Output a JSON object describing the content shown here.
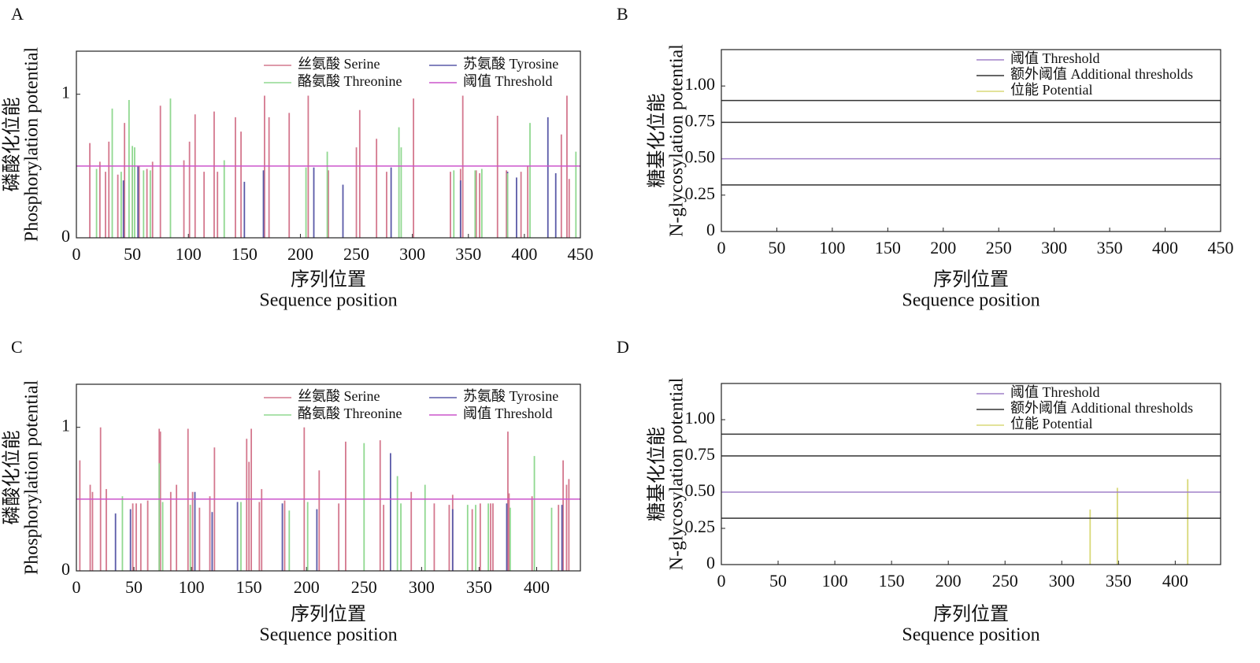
{
  "chart_data": [
    {
      "type": "bar",
      "panel": "A",
      "ylabel": [
        "磷酸化位能",
        "Phosphorylation potential"
      ],
      "xlabel": [
        "序列位置",
        "Sequence position"
      ],
      "xlim": [
        0,
        450
      ],
      "xticks": [
        0,
        50,
        100,
        150,
        200,
        250,
        300,
        350,
        400,
        450
      ],
      "ylim": [
        0,
        1.3
      ],
      "yticks": [
        0,
        1
      ],
      "series": [
        {
          "name": "丝氨酸 Serine",
          "color": "#d4788e",
          "x": [
            12,
            21,
            26,
            29,
            37,
            43,
            50,
            56,
            63,
            68,
            75,
            96,
            101,
            106,
            114,
            123,
            126,
            142,
            147,
            168,
            172,
            190,
            207,
            225,
            250,
            253,
            268,
            277,
            301,
            334,
            343,
            345,
            357,
            360,
            376,
            384,
            397,
            403,
            433,
            438,
            440
          ],
          "values": [
            0.66,
            0.53,
            0.46,
            0.67,
            0.44,
            0.8,
            0.48,
            0.5,
            0.48,
            0.53,
            0.92,
            0.54,
            0.67,
            0.86,
            0.46,
            0.88,
            0.46,
            0.84,
            0.74,
            0.99,
            0.84,
            0.87,
            0.99,
            0.47,
            0.63,
            0.89,
            0.69,
            0.46,
            0.97,
            0.46,
            0.48,
            0.99,
            0.47,
            0.45,
            0.85,
            0.47,
            0.46,
            0.5,
            0.72,
            0.99,
            0.41
          ]
        },
        {
          "name": "苏氨酸 Tyrosine",
          "color": "#5a5aa8",
          "x": [
            42,
            55,
            150,
            167,
            212,
            238,
            281,
            343,
            385,
            393,
            421,
            428
          ],
          "values": [
            0.4,
            0.5,
            0.39,
            0.47,
            0.49,
            0.37,
            0.49,
            0.4,
            0.46,
            0.42,
            0.84,
            0.45
          ]
        },
        {
          "name": "酪氨酸 Threonine",
          "color": "#90d890",
          "x": [
            18,
            32,
            40,
            47,
            50,
            52,
            60,
            66,
            84,
            132,
            205,
            224,
            288,
            290,
            337,
            356,
            362,
            385,
            405,
            446
          ],
          "values": [
            0.48,
            0.9,
            0.46,
            0.96,
            0.64,
            0.63,
            0.47,
            0.47,
            0.97,
            0.54,
            0.49,
            0.6,
            0.77,
            0.63,
            0.47,
            0.47,
            0.48,
            0.45,
            0.8,
            0.6
          ]
        },
        {
          "name": "阈值 Threshold",
          "color": "#cc55cc",
          "values": [
            0.5
          ]
        }
      ]
    },
    {
      "type": "bar",
      "panel": "B",
      "ylabel": [
        "糖基化位能",
        "N-glycosylation potential"
      ],
      "xlabel": [
        "序列位置",
        "Sequence position"
      ],
      "xlim": [
        0,
        450
      ],
      "xticks": [
        0,
        50,
        100,
        150,
        200,
        250,
        300,
        350,
        400,
        450
      ],
      "ylim": [
        0,
        1.25
      ],
      "yticks": [
        0,
        0.25,
        {
          "value": 0.5,
          "label": "0.50"
        },
        0.75,
        {
          "value": 1,
          "label": "1.00"
        }
      ],
      "series": [
        {
          "name": "阈值 Threshold",
          "color": "#a080c8",
          "values": [
            0.5
          ]
        },
        {
          "name": "额外阈值 Additional thresholds",
          "color": "#333333",
          "values": [
            0.32,
            0.75,
            0.9
          ]
        },
        {
          "name": "位能 Potential",
          "color": "#d8d878",
          "x": [],
          "values": []
        }
      ]
    },
    {
      "type": "bar",
      "panel": "C",
      "ylabel": [
        "磷酸化位能",
        "Phosphorylation potential"
      ],
      "xlabel": [
        "序列位置",
        "Sequence position"
      ],
      "xlim": [
        0,
        438
      ],
      "xticks": [
        0,
        50,
        100,
        150,
        200,
        250,
        300,
        350,
        400
      ],
      "ylim": [
        0,
        1.3
      ],
      "yticks": [
        0,
        1
      ],
      "series": [
        {
          "name": "丝氨酸 Serine",
          "color": "#d4788e",
          "x": [
            3,
            12,
            14,
            21,
            26,
            49,
            52,
            56,
            62,
            72,
            73,
            82,
            87,
            97,
            101,
            107,
            116,
            120,
            148,
            150,
            152,
            159,
            161,
            181,
            198,
            211,
            228,
            234,
            264,
            267,
            291,
            311,
            324,
            327,
            344,
            351,
            360,
            362,
            375,
            376,
            396,
            419,
            423,
            426,
            428
          ],
          "values": [
            0.77,
            0.6,
            0.55,
            1.0,
            0.57,
            0.47,
            0.47,
            0.47,
            0.49,
            0.99,
            0.97,
            0.55,
            0.6,
            0.99,
            0.55,
            0.44,
            0.52,
            0.86,
            0.92,
            0.76,
            0.99,
            0.48,
            0.57,
            0.49,
            1.0,
            0.7,
            0.47,
            0.9,
            0.91,
            0.46,
            0.55,
            0.47,
            0.46,
            0.53,
            0.43,
            0.47,
            0.47,
            0.47,
            0.97,
            0.54,
            0.52,
            0.46,
            0.77,
            0.6,
            0.64
          ]
        },
        {
          "name": "苏氨酸 Tyrosine",
          "color": "#5a5aa8",
          "x": [
            34,
            47,
            103,
            118,
            140,
            179,
            209,
            273,
            327,
            374,
            422
          ],
          "values": [
            0.4,
            0.43,
            0.55,
            0.41,
            0.48,
            0.47,
            0.43,
            0.82,
            0.43,
            0.47,
            0.46
          ]
        },
        {
          "name": "酪氨酸 Threonine",
          "color": "#90d890",
          "x": [
            40,
            72,
            75,
            99,
            143,
            185,
            201,
            250,
            279,
            282,
            303,
            340,
            347,
            358,
            377,
            398,
            413
          ],
          "values": [
            0.52,
            0.75,
            0.48,
            0.46,
            0.48,
            0.42,
            0.48,
            0.89,
            0.66,
            0.47,
            0.6,
            0.46,
            0.46,
            0.47,
            0.44,
            0.8,
            0.44
          ]
        },
        {
          "name": "阈值 Threshold",
          "color": "#cc55cc",
          "values": [
            0.5
          ]
        }
      ]
    },
    {
      "type": "bar",
      "panel": "D",
      "ylabel": [
        "糖基化位能",
        "N-glycosylation potential"
      ],
      "xlabel": [
        "序列位置",
        "Sequence position"
      ],
      "xlim": [
        0,
        440
      ],
      "xticks": [
        0,
        50,
        100,
        150,
        200,
        250,
        300,
        350,
        400
      ],
      "ylim": [
        0,
        1.25
      ],
      "yticks": [
        0,
        0.25,
        {
          "value": 0.5,
          "label": "0.50"
        },
        0.75,
        {
          "value": 1,
          "label": "1.00"
        }
      ],
      "series": [
        {
          "name": "阈值 Threshold",
          "color": "#a080c8",
          "values": [
            0.5
          ]
        },
        {
          "name": "额外阈值 Additional thresholds",
          "color": "#333333",
          "values": [
            0.32,
            0.75,
            0.9
          ]
        },
        {
          "name": "位能 Potential",
          "color": "#d8d878",
          "x": [
            325,
            349,
            411
          ],
          "values": [
            0.38,
            0.53,
            0.59
          ]
        }
      ]
    }
  ]
}
